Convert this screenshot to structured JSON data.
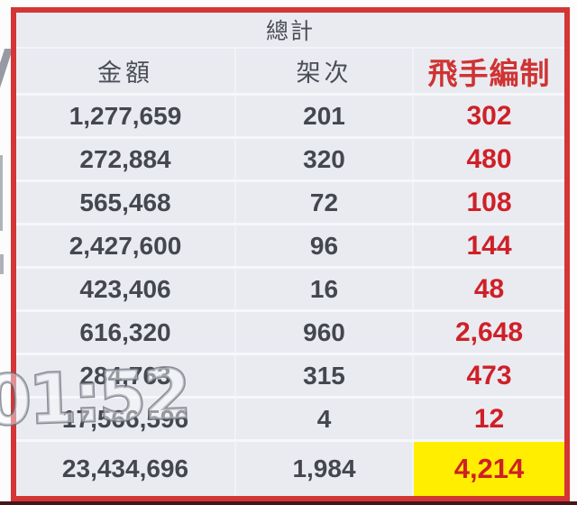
{
  "window": {
    "watermark": "01:52"
  },
  "table": {
    "title": "總計",
    "columns": [
      "金額",
      "架次",
      "飛手編制"
    ],
    "rows": [
      {
        "amount": "1,277,659",
        "sorties": "201",
        "pilots": "302"
      },
      {
        "amount": "272,884",
        "sorties": "320",
        "pilots": "480"
      },
      {
        "amount": "565,468",
        "sorties": "72",
        "pilots": "108"
      },
      {
        "amount": "2,427,600",
        "sorties": "96",
        "pilots": "144"
      },
      {
        "amount": "423,406",
        "sorties": "16",
        "pilots": "48"
      },
      {
        "amount": "616,320",
        "sorties": "960",
        "pilots": "2,648"
      },
      {
        "amount": "284,763",
        "sorties": "315",
        "pilots": "473"
      },
      {
        "amount": "17,566,596",
        "sorties": "4",
        "pilots": "12"
      }
    ],
    "total": {
      "amount": "23,434,696",
      "sorties": "1,984",
      "pilots": "4,214"
    }
  },
  "colors": {
    "accent_red": "#cf2027",
    "header_red": "#cf3333",
    "highlight_yellow": "#ffee00",
    "border_red": "#d43535"
  }
}
